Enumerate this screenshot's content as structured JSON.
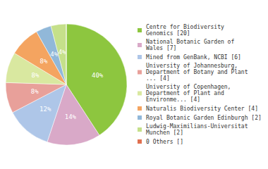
{
  "chart_data": {
    "type": "pie",
    "categories": [
      "Centre for Biodiversity\nGenomics [20]",
      "National Botanic Garden of\nWales [7]",
      "Mined from GenBank, NCBI [6]",
      "University of Johannesburg,\nDepartment of Botany and Plant\n... [4]",
      "University of Copenhagen,\nDepartment of Plant and\nEnvironme... [4]",
      "Naturalis Biodiversity Center [4]",
      "Royal Botanic Garden Edinburgh [2]",
      "Ludwig-Maximilians-Universitat\nMunchen [2]",
      "0 Others []"
    ],
    "values": [
      40,
      14,
      12,
      8,
      8,
      8,
      4,
      4,
      0.002
    ],
    "value_labels": [
      "40%",
      "14%",
      "12%",
      "8%",
      "8%",
      "8%",
      "4%",
      "4%",
      null
    ],
    "colors": [
      "#8dc63f",
      "#d9a9c8",
      "#aec6e8",
      "#e8a09a",
      "#d9e8a0",
      "#f4a460",
      "#91b8d9",
      "#c5e08a",
      "#e07050"
    ],
    "data_labels": true,
    "legend": "right"
  }
}
